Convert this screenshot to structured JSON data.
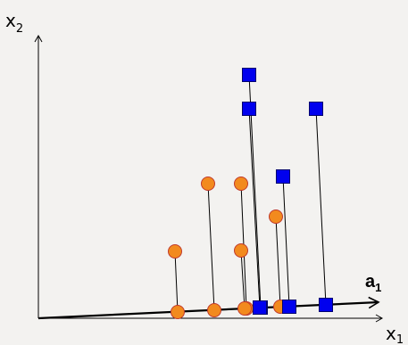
{
  "axes": {
    "x_label": "x",
    "x_subscript": "1",
    "y_label": "x",
    "y_subscript": "2"
  },
  "vector": {
    "label": "a",
    "subscript": "1"
  },
  "colors": {
    "background": "#f3f2f0",
    "circle_fill": "#f28a1e",
    "circle_stroke": "#c0392b",
    "square_fill": "#0000ee",
    "square_stroke": "#00006e",
    "line": "#000000"
  },
  "marker_types": {
    "class_a": "circle",
    "class_b": "square"
  }
}
